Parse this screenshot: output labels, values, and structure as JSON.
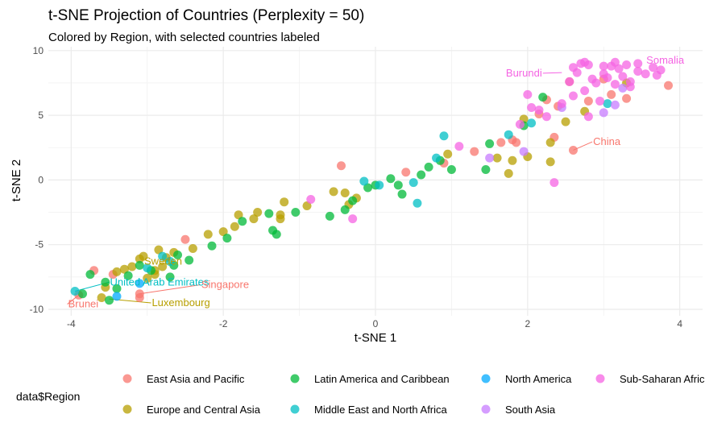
{
  "chart_data": {
    "type": "scatter",
    "title": "t-SNE Projection of Countries (Perplexity = 50)",
    "subtitle": "Colored by Region, with selected countries labeled",
    "xlabel": "t-SNE 1",
    "ylabel": "t-SNE 2",
    "xlim": [
      -4.3,
      4.3
    ],
    "ylim": [
      -10.5,
      10.3
    ],
    "x_ticks": [
      -4,
      -2,
      0,
      2,
      4
    ],
    "y_ticks": [
      -10,
      -5,
      0,
      5,
      10
    ],
    "grid": true,
    "legend": {
      "title": "data$Region",
      "placement": "bottom"
    },
    "series": [
      {
        "name": "East Asia and Pacific",
        "color": "#F8766D",
        "points": [
          [
            -3.9,
            -8.9
          ],
          [
            -3.7,
            -7.0
          ],
          [
            -3.45,
            -7.3
          ],
          [
            -3.1,
            -9.1
          ],
          [
            -3.1,
            -8.8
          ],
          [
            -2.5,
            -4.6
          ],
          [
            -0.45,
            1.1
          ],
          [
            0.4,
            0.6
          ],
          [
            0.9,
            1.3
          ],
          [
            1.3,
            2.2
          ],
          [
            1.65,
            2.9
          ],
          [
            1.8,
            3.1
          ],
          [
            1.85,
            2.9
          ],
          [
            2.35,
            3.3
          ],
          [
            2.4,
            5.7
          ],
          [
            2.6,
            2.3
          ],
          [
            2.8,
            6.1
          ],
          [
            3.0,
            7.8
          ],
          [
            3.1,
            6.6
          ],
          [
            3.3,
            6.3
          ],
          [
            3.85,
            7.3
          ],
          [
            2.15,
            5.1
          ],
          [
            2.55,
            7.6
          ],
          [
            2.25,
            6.2
          ]
        ]
      },
      {
        "name": "Europe and Central Asia",
        "color": "#B79F00",
        "points": [
          [
            -3.6,
            -9.1
          ],
          [
            -3.55,
            -8.3
          ],
          [
            -3.4,
            -7.1
          ],
          [
            -3.3,
            -6.9
          ],
          [
            -3.2,
            -6.7
          ],
          [
            -3.1,
            -6.1
          ],
          [
            -3.05,
            -5.9
          ],
          [
            -3.0,
            -7.6
          ],
          [
            -2.9,
            -7.3
          ],
          [
            -2.85,
            -5.4
          ],
          [
            -2.8,
            -6.7
          ],
          [
            -2.75,
            -6.0
          ],
          [
            -2.65,
            -5.6
          ],
          [
            -2.4,
            -5.3
          ],
          [
            -2.2,
            -4.2
          ],
          [
            -2.0,
            -4.0
          ],
          [
            -1.85,
            -3.6
          ],
          [
            -1.8,
            -2.7
          ],
          [
            -1.6,
            -3.0
          ],
          [
            -1.55,
            -2.5
          ],
          [
            -1.25,
            -2.7
          ],
          [
            -1.25,
            -3.0
          ],
          [
            -1.2,
            -1.7
          ],
          [
            -0.9,
            -2.0
          ],
          [
            -0.55,
            -0.9
          ],
          [
            -0.4,
            -1.0
          ],
          [
            -0.35,
            -1.9
          ],
          [
            -0.25,
            -1.4
          ],
          [
            0.95,
            2.0
          ],
          [
            1.6,
            1.7
          ],
          [
            1.75,
            0.5
          ],
          [
            1.8,
            1.5
          ],
          [
            1.95,
            4.7
          ],
          [
            2.0,
            1.8
          ],
          [
            2.3,
            2.9
          ],
          [
            2.3,
            1.4
          ],
          [
            2.5,
            4.5
          ],
          [
            2.75,
            5.3
          ],
          [
            3.3,
            7.5
          ],
          [
            -2.9,
            -7.0
          ]
        ]
      },
      {
        "name": "Latin America and Caribbean",
        "color": "#00BA38",
        "points": [
          [
            -3.85,
            -8.8
          ],
          [
            -3.75,
            -7.3
          ],
          [
            -3.55,
            -7.9
          ],
          [
            -3.5,
            -9.3
          ],
          [
            -3.4,
            -8.4
          ],
          [
            -3.25,
            -7.4
          ],
          [
            -3.1,
            -6.6
          ],
          [
            -2.95,
            -7.0
          ],
          [
            -2.7,
            -7.5
          ],
          [
            -2.65,
            -6.6
          ],
          [
            -2.6,
            -5.8
          ],
          [
            -2.45,
            -6.2
          ],
          [
            -2.15,
            -5.1
          ],
          [
            -1.95,
            -4.5
          ],
          [
            -1.75,
            -3.2
          ],
          [
            -1.4,
            -2.6
          ],
          [
            -1.35,
            -3.9
          ],
          [
            -1.3,
            -4.2
          ],
          [
            -1.05,
            -2.5
          ],
          [
            -0.6,
            -2.8
          ],
          [
            -0.4,
            -2.3
          ],
          [
            -0.3,
            -1.6
          ],
          [
            -0.1,
            -0.6
          ],
          [
            0.0,
            -0.4
          ],
          [
            0.2,
            0.1
          ],
          [
            0.3,
            -0.4
          ],
          [
            0.35,
            -1.1
          ],
          [
            0.6,
            0.4
          ],
          [
            0.7,
            1.0
          ],
          [
            0.85,
            1.5
          ],
          [
            1.0,
            0.8
          ],
          [
            1.45,
            0.8
          ],
          [
            1.5,
            2.8
          ],
          [
            1.95,
            4.2
          ],
          [
            2.2,
            6.4
          ]
        ]
      },
      {
        "name": "Middle East and North Africa",
        "color": "#00BFC4",
        "points": [
          [
            -3.95,
            -8.6
          ],
          [
            -2.7,
            -6.3
          ],
          [
            -2.8,
            -5.9
          ],
          [
            -0.15,
            -0.1
          ],
          [
            0.05,
            -0.4
          ],
          [
            0.5,
            -0.2
          ],
          [
            0.55,
            -1.8
          ],
          [
            0.8,
            1.7
          ],
          [
            0.9,
            3.4
          ],
          [
            1.75,
            3.5
          ],
          [
            2.05,
            4.4
          ],
          [
            3.05,
            5.9
          ],
          [
            -3.0,
            -6.8
          ]
        ]
      },
      {
        "name": "North America",
        "color": "#00A9FF",
        "points": [
          [
            -3.4,
            -9.0
          ],
          [
            -3.1,
            -8.0
          ]
        ]
      },
      {
        "name": "South Asia",
        "color": "#C77CFF",
        "points": [
          [
            1.5,
            1.7
          ],
          [
            1.95,
            2.2
          ],
          [
            2.45,
            5.6
          ],
          [
            3.0,
            5.2
          ],
          [
            3.15,
            5.8
          ],
          [
            3.25,
            7.1
          ]
        ]
      },
      {
        "name": "Sub-Saharan Africa",
        "color": "#F564E3",
        "points": [
          [
            -0.85,
            -1.5
          ],
          [
            -0.3,
            -3.0
          ],
          [
            1.1,
            2.6
          ],
          [
            1.9,
            4.3
          ],
          [
            2.0,
            6.6
          ],
          [
            2.05,
            5.6
          ],
          [
            2.15,
            5.4
          ],
          [
            2.25,
            4.9
          ],
          [
            2.35,
            -0.2
          ],
          [
            2.45,
            5.9
          ],
          [
            2.55,
            7.6
          ],
          [
            2.6,
            8.7
          ],
          [
            2.65,
            8.3
          ],
          [
            2.7,
            9.0
          ],
          [
            2.8,
            8.9
          ],
          [
            2.85,
            7.8
          ],
          [
            2.9,
            7.5
          ],
          [
            3.0,
            8.2
          ],
          [
            3.05,
            7.9
          ],
          [
            3.1,
            8.8
          ],
          [
            3.15,
            9.1
          ],
          [
            3.15,
            7.4
          ],
          [
            3.2,
            8.6
          ],
          [
            3.25,
            8.0
          ],
          [
            3.3,
            8.9
          ],
          [
            3.35,
            7.6
          ],
          [
            3.45,
            8.4
          ],
          [
            3.55,
            8.2
          ],
          [
            3.65,
            8.7
          ],
          [
            3.7,
            8.1
          ],
          [
            3.75,
            8.5
          ],
          [
            2.6,
            6.5
          ],
          [
            2.8,
            4.9
          ],
          [
            3.35,
            7.2
          ],
          [
            3.0,
            8.8
          ],
          [
            2.75,
            9.1
          ],
          [
            2.75,
            6.9
          ],
          [
            2.95,
            6.1
          ],
          [
            3.45,
            9.0
          ]
        ]
      }
    ],
    "labels": [
      {
        "text": "Somalia",
        "series": "Sub-Saharan Africa",
        "x": 3.55,
        "y": 9.25,
        "ax": 3.55,
        "ay": 9.1
      },
      {
        "text": "Burundi",
        "series": "Sub-Saharan Africa",
        "x": 2.2,
        "y": 8.25,
        "ax": 2.45,
        "ay": 8.3
      },
      {
        "text": "China",
        "series": "East Asia and Pacific",
        "x": 2.85,
        "y": 2.95,
        "ax": 2.6,
        "ay": 2.3
      },
      {
        "text": "Sweden",
        "series": "Europe and Central Asia",
        "x": -3.05,
        "y": -6.3,
        "ax": -2.95,
        "ay": -6.7
      },
      {
        "text": "United Arab Emirates",
        "series": "Middle East and North Africa",
        "x": -3.5,
        "y": -7.9,
        "ax": -3.95,
        "ay": -8.6
      },
      {
        "text": "Singapore",
        "series": "East Asia and Pacific",
        "x": -2.3,
        "y": -8.1,
        "ax": -3.1,
        "ay": -8.8
      },
      {
        "text": "Brunei",
        "series": "East Asia and Pacific",
        "x": -4.05,
        "y": -9.6,
        "ax": -3.9,
        "ay": -8.9
      },
      {
        "text": "Luxembourg",
        "series": "Europe and Central Asia",
        "x": -2.95,
        "y": -9.5,
        "ax": -3.5,
        "ay": -9.2
      }
    ]
  }
}
